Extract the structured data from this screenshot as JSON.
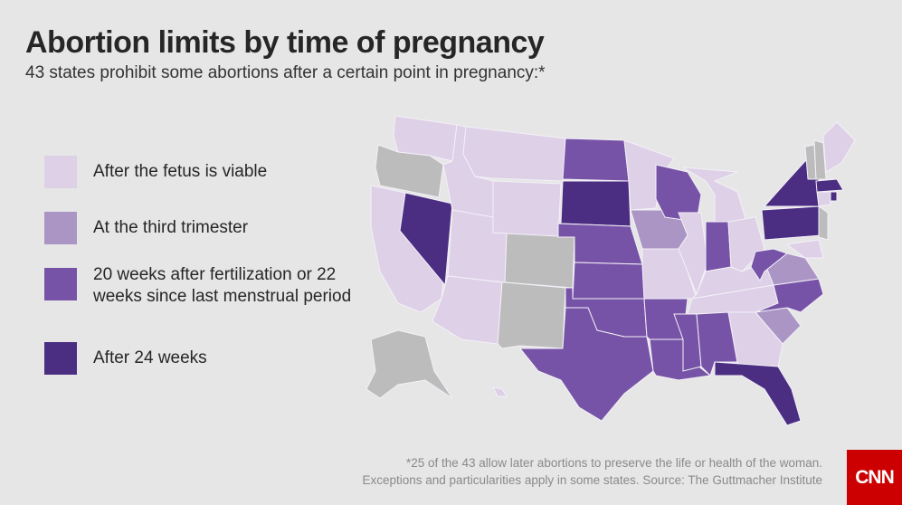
{
  "title": "Abortion limits by time of pregnancy",
  "subtitle": "43 states prohibit some abortions after a certain point in pregnancy:*",
  "legend": [
    {
      "key": "viable",
      "label": "After the fetus is viable",
      "color": "#ddd0e7"
    },
    {
      "key": "third",
      "label": "At the third trimester",
      "color": "#ab95c5"
    },
    {
      "key": "w20",
      "label": "20 weeks after fertilization or 22 weeks since last menstrual period",
      "color": "#7653a6"
    },
    {
      "key": "w24",
      "label": "After 24 weeks",
      "color": "#4b2e82"
    }
  ],
  "no_limit_color": "#bcbcbc",
  "states": {
    "WA": "viable",
    "OR": "none",
    "CA": "viable",
    "NV": "w24",
    "ID": "viable",
    "MT": "viable",
    "WY": "viable",
    "UT": "viable",
    "AZ": "viable",
    "CO": "none",
    "NM": "none",
    "ND": "w20",
    "SD": "w24",
    "NE": "w20",
    "KS": "w20",
    "OK": "w20",
    "TX": "w20",
    "MN": "viable",
    "IA": "third",
    "MO": "viable",
    "AR": "w20",
    "LA": "w20",
    "WI": "w20",
    "IL": "viable",
    "MI": "viable",
    "IN": "w20",
    "OH": "viable",
    "KY": "viable",
    "TN": "viable",
    "MS": "w20",
    "AL": "w20",
    "GA": "viable",
    "FL": "w24",
    "SC": "third",
    "NC": "w20",
    "VA": "third",
    "WV": "w20",
    "PA": "w24",
    "NY": "w24",
    "NJ": "none",
    "MD": "viable",
    "VT": "none",
    "NH": "none",
    "ME": "viable",
    "MA": "w24",
    "CT": "viable",
    "RI": "w24",
    "AK": "none",
    "HI": "viable"
  },
  "footnote": [
    "*25 of the 43 allow later abortions to preserve the life or health of the woman.",
    "Exceptions and particularities apply in some states. Source: The Guttmacher Institute"
  ],
  "logo": "CNN"
}
